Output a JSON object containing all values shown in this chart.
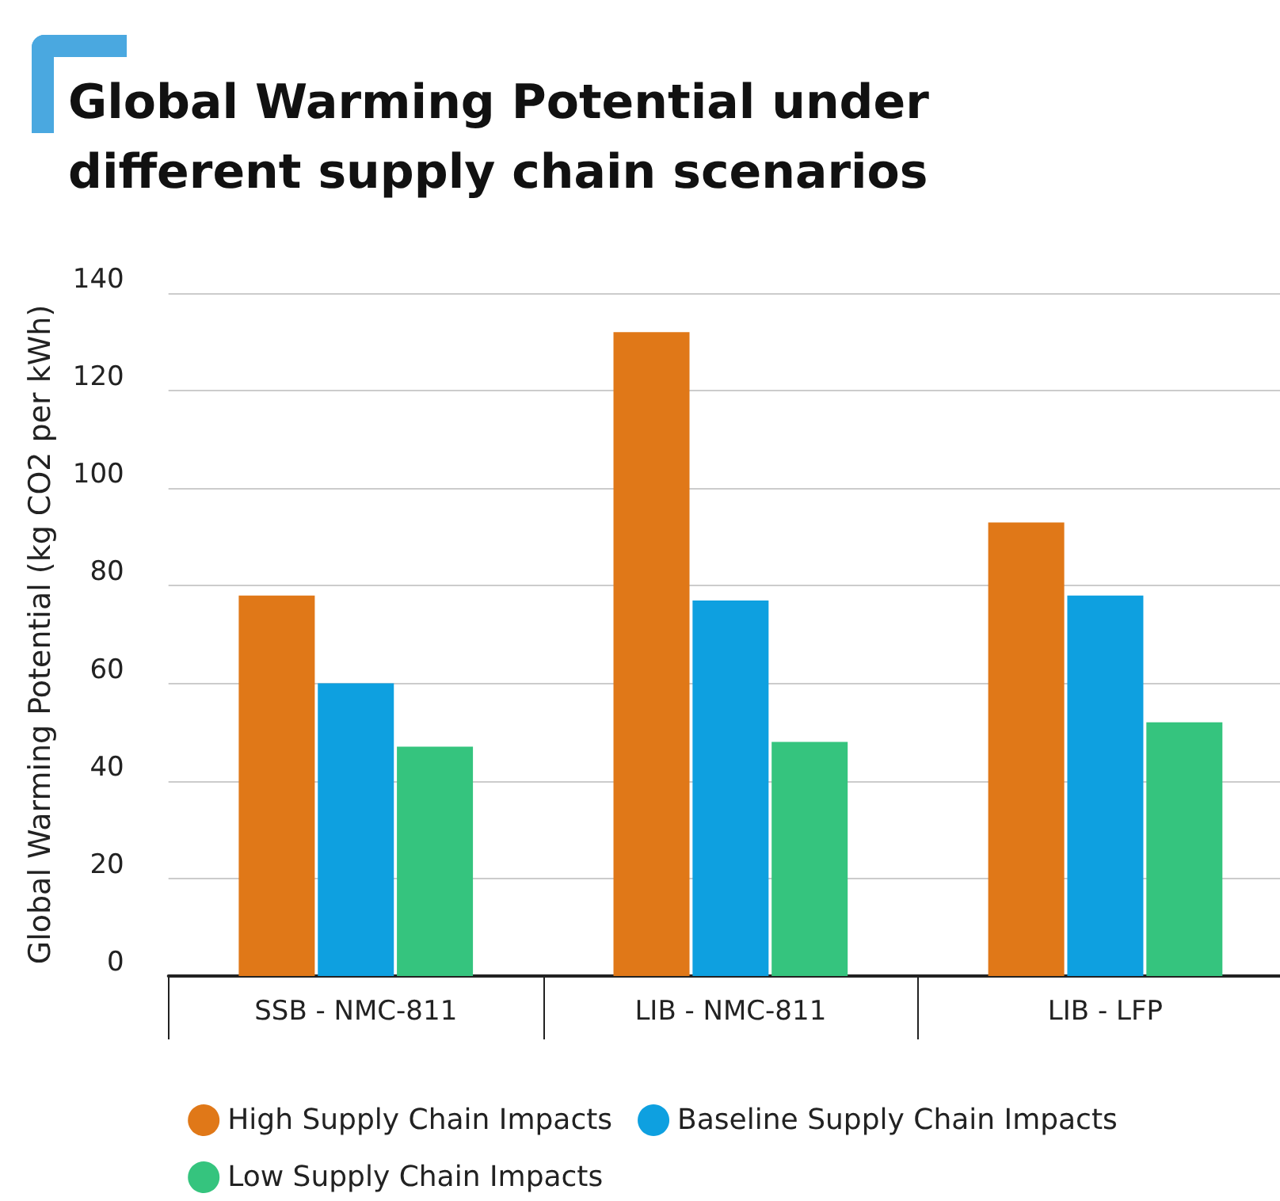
{
  "chart_data": {
    "type": "bar",
    "title": "Global Warming Potential under different supply chain scenarios",
    "ylabel": "Global Warming Potential (kg CO2 per kWh)",
    "categories": [
      "SSB - NMC-811",
      "LIB - NMC-811",
      "LIB - LFP"
    ],
    "series": [
      {
        "name": "High Supply Chain Impacts",
        "color": "#e07818",
        "values": [
          78,
          132,
          93
        ]
      },
      {
        "name": "Baseline Supply Chain Impacts",
        "color": "#0ea0e0",
        "values": [
          60,
          77,
          78
        ]
      },
      {
        "name": "Low Supply Chain Impacts",
        "color": "#35c47e",
        "values": [
          47,
          48,
          52
        ]
      }
    ],
    "ylim": [
      0,
      140
    ],
    "yticks": [
      0,
      20,
      40,
      60,
      80,
      100,
      120,
      140
    ],
    "grid": "y",
    "legend": "bottom"
  }
}
